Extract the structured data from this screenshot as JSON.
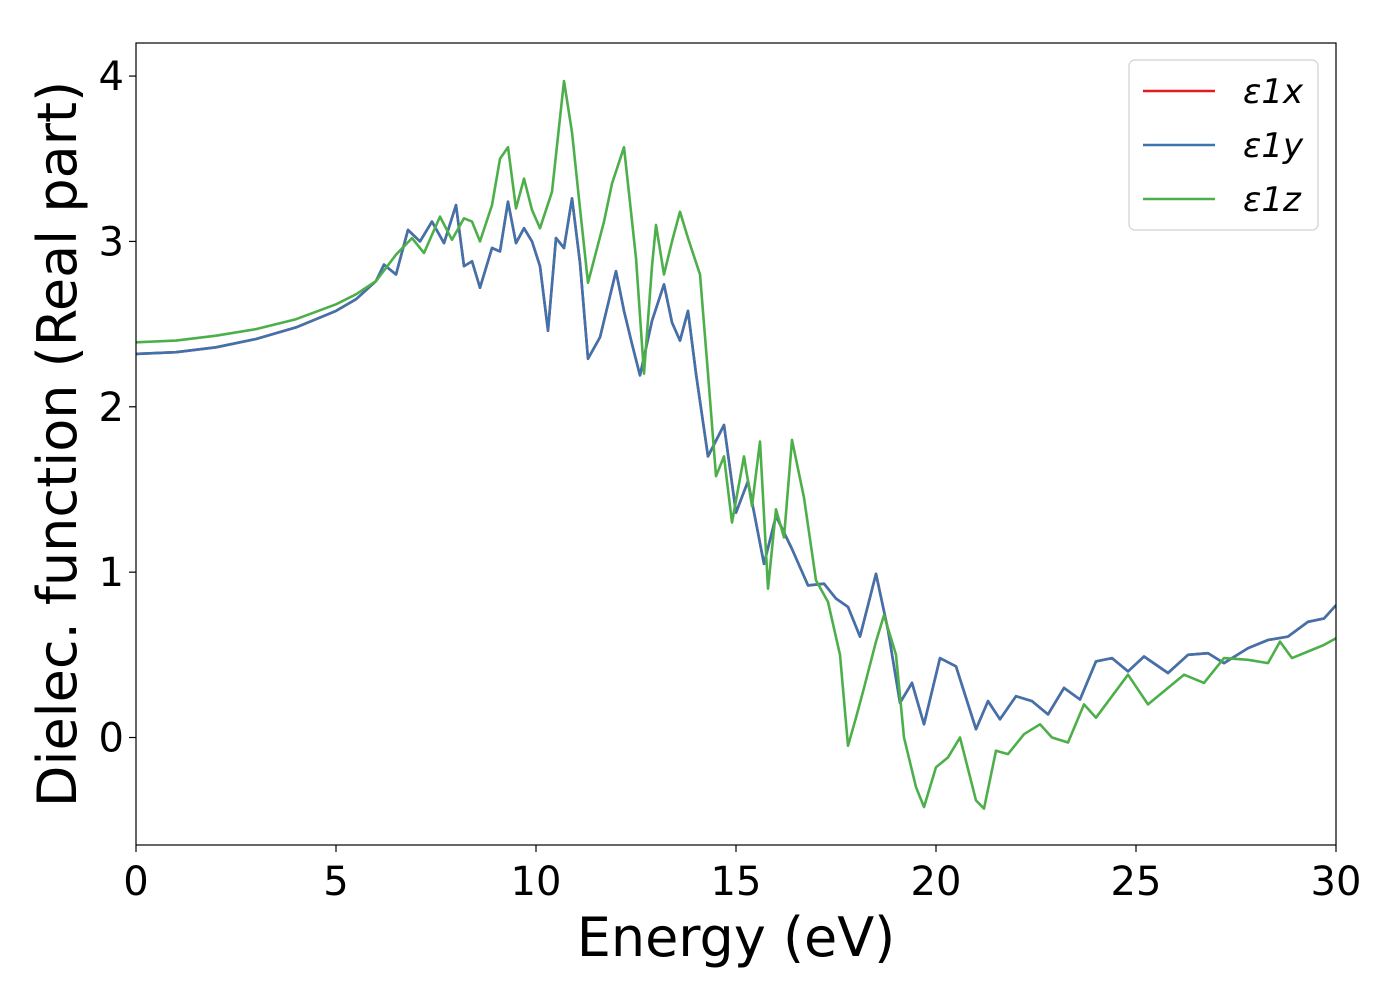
{
  "chart_data": {
    "type": "line",
    "title": "",
    "xlabel": "Energy (eV)",
    "ylabel": "Dielec. function (Real part)",
    "xlim": [
      0,
      30
    ],
    "ylim": [
      -0.65,
      4.2
    ],
    "x_ticks": [
      "0",
      "5",
      "10",
      "15",
      "20",
      "25",
      "30"
    ],
    "y_ticks": [
      "0",
      "1",
      "2",
      "3",
      "4"
    ],
    "grid": false,
    "legend": {
      "position": "top-right",
      "entries": [
        "ε1x",
        "ε1y",
        "ε1z"
      ]
    },
    "series": [
      {
        "name": "ε1x",
        "color": "#e41a1c",
        "points": [
          [
            0,
            2.32
          ],
          [
            1,
            2.33
          ],
          [
            2,
            2.36
          ],
          [
            3,
            2.41
          ],
          [
            4,
            2.48
          ],
          [
            5,
            2.58
          ],
          [
            5.5,
            2.65
          ],
          [
            6,
            2.76
          ],
          [
            6.2,
            2.86
          ],
          [
            6.5,
            2.8
          ],
          [
            6.8,
            3.07
          ],
          [
            7.1,
            3.0
          ],
          [
            7.4,
            3.12
          ],
          [
            7.7,
            2.99
          ],
          [
            8.0,
            3.22
          ],
          [
            8.2,
            2.85
          ],
          [
            8.4,
            2.88
          ],
          [
            8.6,
            2.72
          ],
          [
            8.9,
            2.96
          ],
          [
            9.1,
            2.94
          ],
          [
            9.3,
            3.24
          ],
          [
            9.5,
            2.99
          ],
          [
            9.7,
            3.08
          ],
          [
            9.9,
            3.0
          ],
          [
            10.1,
            2.85
          ],
          [
            10.3,
            2.46
          ],
          [
            10.5,
            3.02
          ],
          [
            10.7,
            2.96
          ],
          [
            10.9,
            3.26
          ],
          [
            11.1,
            2.87
          ],
          [
            11.3,
            2.29
          ],
          [
            11.6,
            2.42
          ],
          [
            12.0,
            2.82
          ],
          [
            12.2,
            2.58
          ],
          [
            12.4,
            2.38
          ],
          [
            12.6,
            2.19
          ],
          [
            12.9,
            2.52
          ],
          [
            13.2,
            2.74
          ],
          [
            13.4,
            2.51
          ],
          [
            13.6,
            2.4
          ],
          [
            13.8,
            2.58
          ],
          [
            14.0,
            2.2
          ],
          [
            14.3,
            1.7
          ],
          [
            14.7,
            1.89
          ],
          [
            15.0,
            1.36
          ],
          [
            15.3,
            1.55
          ],
          [
            15.7,
            1.05
          ],
          [
            16.0,
            1.34
          ],
          [
            16.4,
            1.14
          ],
          [
            16.8,
            0.92
          ],
          [
            17.2,
            0.93
          ],
          [
            17.5,
            0.84
          ],
          [
            17.8,
            0.79
          ],
          [
            18.1,
            0.61
          ],
          [
            18.5,
            0.99
          ],
          [
            18.8,
            0.65
          ],
          [
            19.1,
            0.21
          ],
          [
            19.4,
            0.33
          ],
          [
            19.7,
            0.08
          ],
          [
            20.1,
            0.48
          ],
          [
            20.5,
            0.43
          ],
          [
            21.0,
            0.05
          ],
          [
            21.3,
            0.22
          ],
          [
            21.6,
            0.11
          ],
          [
            22.0,
            0.25
          ],
          [
            22.4,
            0.22
          ],
          [
            22.8,
            0.14
          ],
          [
            23.2,
            0.3
          ],
          [
            23.6,
            0.23
          ],
          [
            24.0,
            0.46
          ],
          [
            24.4,
            0.48
          ],
          [
            24.8,
            0.4
          ],
          [
            25.2,
            0.49
          ],
          [
            25.8,
            0.39
          ],
          [
            26.3,
            0.5
          ],
          [
            26.8,
            0.51
          ],
          [
            27.2,
            0.45
          ],
          [
            27.8,
            0.54
          ],
          [
            28.3,
            0.59
          ],
          [
            28.8,
            0.61
          ],
          [
            29.3,
            0.7
          ],
          [
            29.7,
            0.72
          ],
          [
            30,
            0.8
          ]
        ]
      },
      {
        "name": "ε1y",
        "color": "#3f73ad",
        "points": [
          [
            0,
            2.32
          ],
          [
            1,
            2.33
          ],
          [
            2,
            2.36
          ],
          [
            3,
            2.41
          ],
          [
            4,
            2.48
          ],
          [
            5,
            2.58
          ],
          [
            5.5,
            2.65
          ],
          [
            6,
            2.76
          ],
          [
            6.2,
            2.86
          ],
          [
            6.5,
            2.8
          ],
          [
            6.8,
            3.07
          ],
          [
            7.1,
            3.0
          ],
          [
            7.4,
            3.12
          ],
          [
            7.7,
            2.99
          ],
          [
            8.0,
            3.22
          ],
          [
            8.2,
            2.85
          ],
          [
            8.4,
            2.88
          ],
          [
            8.6,
            2.72
          ],
          [
            8.9,
            2.96
          ],
          [
            9.1,
            2.94
          ],
          [
            9.3,
            3.24
          ],
          [
            9.5,
            2.99
          ],
          [
            9.7,
            3.08
          ],
          [
            9.9,
            3.0
          ],
          [
            10.1,
            2.85
          ],
          [
            10.3,
            2.46
          ],
          [
            10.5,
            3.02
          ],
          [
            10.7,
            2.96
          ],
          [
            10.9,
            3.26
          ],
          [
            11.1,
            2.87
          ],
          [
            11.3,
            2.29
          ],
          [
            11.6,
            2.42
          ],
          [
            12.0,
            2.82
          ],
          [
            12.2,
            2.58
          ],
          [
            12.4,
            2.38
          ],
          [
            12.6,
            2.19
          ],
          [
            12.9,
            2.52
          ],
          [
            13.2,
            2.74
          ],
          [
            13.4,
            2.51
          ],
          [
            13.6,
            2.4
          ],
          [
            13.8,
            2.58
          ],
          [
            14.0,
            2.2
          ],
          [
            14.3,
            1.7
          ],
          [
            14.7,
            1.89
          ],
          [
            15.0,
            1.36
          ],
          [
            15.3,
            1.55
          ],
          [
            15.7,
            1.05
          ],
          [
            16.0,
            1.34
          ],
          [
            16.4,
            1.14
          ],
          [
            16.8,
            0.92
          ],
          [
            17.2,
            0.93
          ],
          [
            17.5,
            0.84
          ],
          [
            17.8,
            0.79
          ],
          [
            18.1,
            0.61
          ],
          [
            18.5,
            0.99
          ],
          [
            18.8,
            0.65
          ],
          [
            19.1,
            0.21
          ],
          [
            19.4,
            0.33
          ],
          [
            19.7,
            0.08
          ],
          [
            20.1,
            0.48
          ],
          [
            20.5,
            0.43
          ],
          [
            21.0,
            0.05
          ],
          [
            21.3,
            0.22
          ],
          [
            21.6,
            0.11
          ],
          [
            22.0,
            0.25
          ],
          [
            22.4,
            0.22
          ],
          [
            22.8,
            0.14
          ],
          [
            23.2,
            0.3
          ],
          [
            23.6,
            0.23
          ],
          [
            24.0,
            0.46
          ],
          [
            24.4,
            0.48
          ],
          [
            24.8,
            0.4
          ],
          [
            25.2,
            0.49
          ],
          [
            25.8,
            0.39
          ],
          [
            26.3,
            0.5
          ],
          [
            26.8,
            0.51
          ],
          [
            27.2,
            0.45
          ],
          [
            27.8,
            0.54
          ],
          [
            28.3,
            0.59
          ],
          [
            28.8,
            0.61
          ],
          [
            29.3,
            0.7
          ],
          [
            29.7,
            0.72
          ],
          [
            30,
            0.8
          ]
        ]
      },
      {
        "name": "ε1z",
        "color": "#4daf4a",
        "points": [
          [
            0,
            2.39
          ],
          [
            1,
            2.4
          ],
          [
            2,
            2.43
          ],
          [
            3,
            2.47
          ],
          [
            4,
            2.53
          ],
          [
            5,
            2.62
          ],
          [
            5.5,
            2.68
          ],
          [
            6,
            2.76
          ],
          [
            6.5,
            2.92
          ],
          [
            6.9,
            3.02
          ],
          [
            7.2,
            2.93
          ],
          [
            7.6,
            3.15
          ],
          [
            7.9,
            3.01
          ],
          [
            8.2,
            3.14
          ],
          [
            8.4,
            3.12
          ],
          [
            8.6,
            3.0
          ],
          [
            8.9,
            3.22
          ],
          [
            9.1,
            3.5
          ],
          [
            9.3,
            3.57
          ],
          [
            9.5,
            3.2
          ],
          [
            9.7,
            3.38
          ],
          [
            9.9,
            3.19
          ],
          [
            10.1,
            3.08
          ],
          [
            10.4,
            3.3
          ],
          [
            10.7,
            3.97
          ],
          [
            10.9,
            3.66
          ],
          [
            11.1,
            3.2
          ],
          [
            11.3,
            2.75
          ],
          [
            11.7,
            3.12
          ],
          [
            11.9,
            3.35
          ],
          [
            12.2,
            3.57
          ],
          [
            12.5,
            2.9
          ],
          [
            12.7,
            2.2
          ],
          [
            12.9,
            2.85
          ],
          [
            13.0,
            3.1
          ],
          [
            13.2,
            2.8
          ],
          [
            13.4,
            3.0
          ],
          [
            13.6,
            3.18
          ],
          [
            13.8,
            3.02
          ],
          [
            14.1,
            2.8
          ],
          [
            14.3,
            2.2
          ],
          [
            14.5,
            1.58
          ],
          [
            14.7,
            1.7
          ],
          [
            14.9,
            1.3
          ],
          [
            15.2,
            1.7
          ],
          [
            15.4,
            1.4
          ],
          [
            15.6,
            1.79
          ],
          [
            15.8,
            0.9
          ],
          [
            16.0,
            1.38
          ],
          [
            16.2,
            1.21
          ],
          [
            16.4,
            1.8
          ],
          [
            16.7,
            1.45
          ],
          [
            17.0,
            0.95
          ],
          [
            17.3,
            0.82
          ],
          [
            17.6,
            0.5
          ],
          [
            17.8,
            -0.05
          ],
          [
            18.0,
            0.12
          ],
          [
            18.2,
            0.3
          ],
          [
            18.5,
            0.58
          ],
          [
            18.7,
            0.74
          ],
          [
            19.0,
            0.5
          ],
          [
            19.2,
            0.0
          ],
          [
            19.5,
            -0.3
          ],
          [
            19.7,
            -0.42
          ],
          [
            20.0,
            -0.18
          ],
          [
            20.3,
            -0.12
          ],
          [
            20.6,
            0.0
          ],
          [
            21.0,
            -0.38
          ],
          [
            21.2,
            -0.43
          ],
          [
            21.5,
            -0.08
          ],
          [
            21.8,
            -0.1
          ],
          [
            22.2,
            0.02
          ],
          [
            22.6,
            0.08
          ],
          [
            22.9,
            0.0
          ],
          [
            23.3,
            -0.03
          ],
          [
            23.7,
            0.2
          ],
          [
            24.0,
            0.12
          ],
          [
            24.4,
            0.25
          ],
          [
            24.8,
            0.38
          ],
          [
            25.3,
            0.2
          ],
          [
            25.8,
            0.3
          ],
          [
            26.2,
            0.38
          ],
          [
            26.7,
            0.33
          ],
          [
            27.2,
            0.48
          ],
          [
            27.8,
            0.47
          ],
          [
            28.3,
            0.45
          ],
          [
            28.6,
            0.58
          ],
          [
            28.9,
            0.48
          ],
          [
            29.3,
            0.52
          ],
          [
            29.7,
            0.56
          ],
          [
            30,
            0.6
          ]
        ]
      }
    ]
  }
}
